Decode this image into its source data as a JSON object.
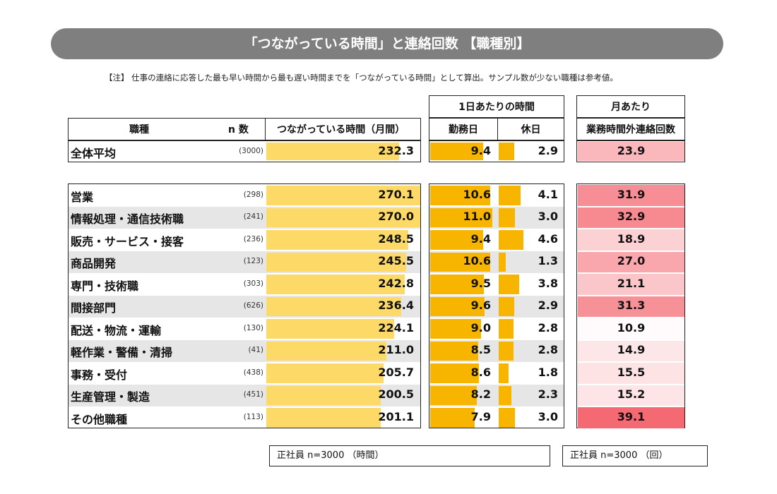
{
  "title": "「つながっている時間」と連絡回数 【職種別】",
  "note": "【注】 仕事の連絡に応答した最も早い時間から最も遅い時間までを「つながっている時間」として算出。サンプル数が少ない職種は参考値。",
  "headers": {
    "occupation": "職種",
    "n": "n 数",
    "connected_monthly": "つながっている時間（月間）",
    "per_day_group": "1日あたりの時間",
    "workday": "勤務日",
    "holiday": "休日",
    "per_month_group": "月あたり",
    "contacts": "業務時間外連絡回数"
  },
  "legend": {
    "left": "正社員 n=3000 （時間）",
    "right": "正社員 n=3000 （回）"
  },
  "colors": {
    "bar_monthly": "#fdd968",
    "bar_workday": "#f7b500",
    "bar_holiday": "#f7b500",
    "row_alt": "#e6e6e6",
    "heat_low": "#ffffff",
    "heat_high": "#f4646e"
  },
  "chart_data": {
    "type": "table",
    "columns": [
      "つながっている時間（月間）",
      "勤務日",
      "休日",
      "業務時間外連絡回数"
    ],
    "total": {
      "label": "全体平均",
      "n": "(3000)",
      "monthly": 232.3,
      "workday": 9.4,
      "holiday": 2.9,
      "contacts": 23.9
    },
    "rows": [
      {
        "label": "営業",
        "n": "(298)",
        "monthly": 270.1,
        "workday": 10.6,
        "holiday": 4.1,
        "contacts": 31.9
      },
      {
        "label": "情報処理・通信技術職",
        "n": "(241)",
        "monthly": 270.0,
        "workday": 11.0,
        "holiday": 3.0,
        "contacts": 32.9
      },
      {
        "label": "販売・サービス・接客",
        "n": "(236)",
        "monthly": 248.5,
        "workday": 9.4,
        "holiday": 4.6,
        "contacts": 18.9
      },
      {
        "label": "商品開発",
        "n": "(123)",
        "monthly": 245.5,
        "workday": 10.6,
        "holiday": 1.3,
        "contacts": 27.0
      },
      {
        "label": "専門・技術職",
        "n": "(303)",
        "monthly": 242.8,
        "workday": 9.5,
        "holiday": 3.8,
        "contacts": 21.1
      },
      {
        "label": "間接部門",
        "n": "(626)",
        "monthly": 236.4,
        "workday": 9.6,
        "holiday": 2.9,
        "contacts": 31.3
      },
      {
        "label": "配送・物流・運輸",
        "n": "(130)",
        "monthly": 224.1,
        "workday": 9.0,
        "holiday": 2.8,
        "contacts": 10.9
      },
      {
        "label": "軽作業・警備・清掃",
        "n": "(41)",
        "monthly": 211.0,
        "workday": 8.5,
        "holiday": 2.8,
        "contacts": 14.9
      },
      {
        "label": "事務・受付",
        "n": "(438)",
        "monthly": 205.7,
        "workday": 8.6,
        "holiday": 1.8,
        "contacts": 15.5
      },
      {
        "label": "生産管理・製造",
        "n": "(451)",
        "monthly": 200.5,
        "workday": 8.2,
        "holiday": 2.3,
        "contacts": 15.2
      },
      {
        "label": "その他職種",
        "n": "(113)",
        "monthly": 201.1,
        "workday": 7.9,
        "holiday": 3.0,
        "contacts": 39.1
      }
    ],
    "scale": {
      "monthly_min": 0,
      "monthly_max": 270,
      "workday_max": 12,
      "holiday_max": 12,
      "contacts_min": 10,
      "contacts_max": 40
    }
  }
}
